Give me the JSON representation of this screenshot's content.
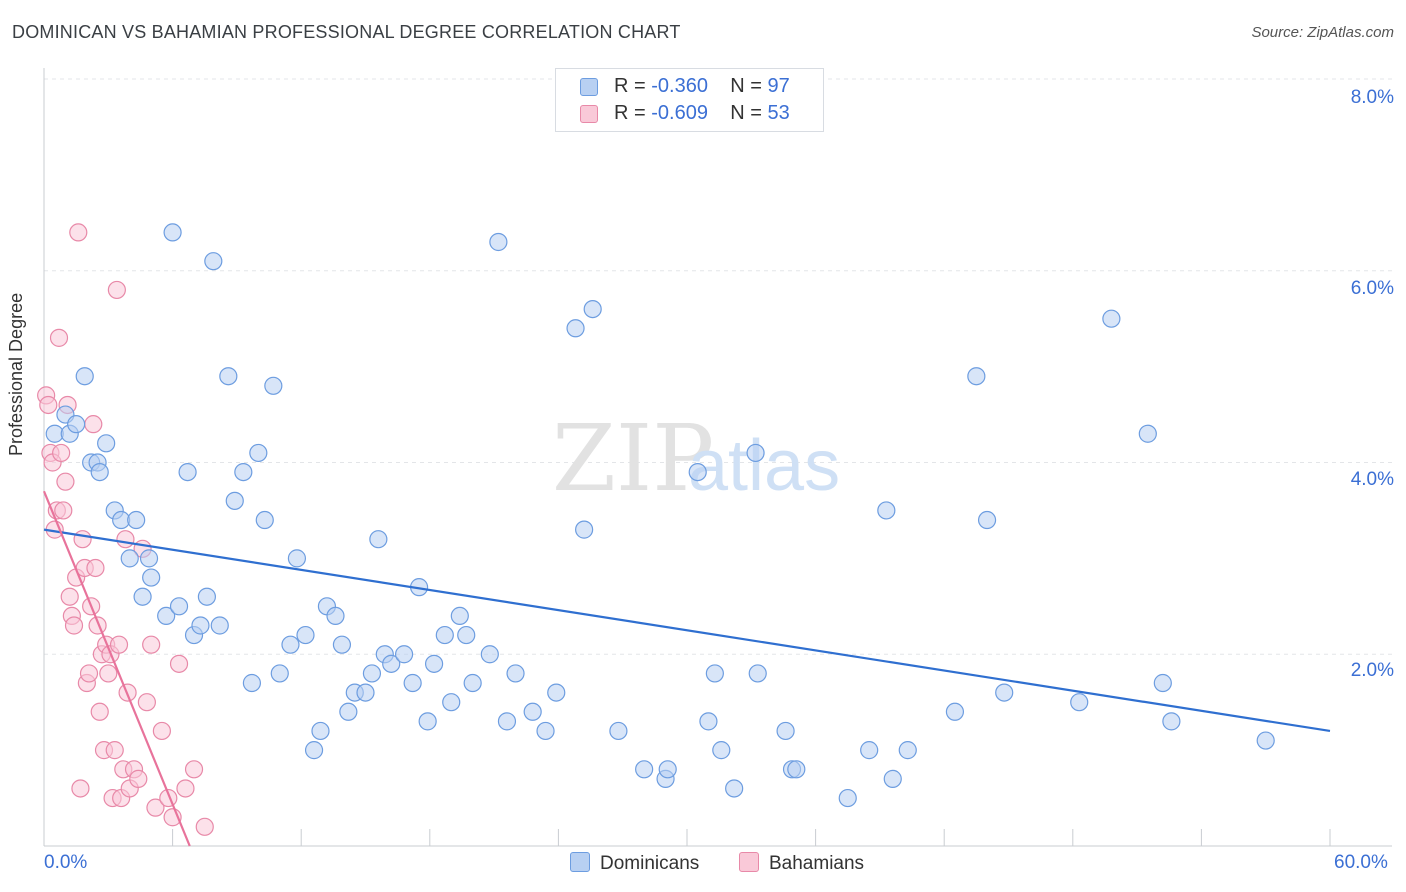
{
  "header": {
    "title": "DOMINICAN VS BAHAMIAN PROFESSIONAL DEGREE CORRELATION CHART",
    "source": "Source: ZipAtlas.com"
  },
  "watermark": {
    "zip": "ZIP",
    "atlas": "atlas"
  },
  "legend": {
    "r_label": "R =",
    "n_label": "N =",
    "dominicans": {
      "r": "-0.360",
      "n": "97"
    },
    "bahamians": {
      "r": "-0.609",
      "n": "53"
    }
  },
  "axis": {
    "ylabel": "Professional Degree",
    "x_min_label": "0.0%",
    "x_max_label": "60.0%",
    "y_ticks": [
      "2.0%",
      "4.0%",
      "6.0%",
      "8.0%"
    ]
  },
  "colors": {
    "blue_fill": "#b8d0f2",
    "blue_stroke": "#6d9de0",
    "blue_line": "#2f6fd0",
    "pink_fill": "#f9c9d8",
    "pink_stroke": "#e889a8",
    "pink_line": "#e8739b"
  },
  "chart_data": {
    "type": "scatter",
    "title": "DOMINICAN VS BAHAMIAN PROFESSIONAL DEGREE CORRELATION CHART",
    "xlabel": "",
    "ylabel": "Professional Degree",
    "xlim": [
      0,
      60
    ],
    "ylim": [
      0,
      8.0
    ],
    "y_ticks": [
      2,
      4,
      6,
      8
    ],
    "grid": true,
    "legend_position": "top-center",
    "series": [
      {
        "name": "Dominicans",
        "r": -0.36,
        "n": 97,
        "trend": {
          "x": [
            0,
            60
          ],
          "y": [
            3.3,
            1.2
          ]
        },
        "points": [
          [
            0.5,
            4.3
          ],
          [
            1.0,
            4.5
          ],
          [
            1.2,
            4.3
          ],
          [
            1.5,
            4.4
          ],
          [
            1.9,
            4.9
          ],
          [
            2.2,
            4.0
          ],
          [
            2.5,
            4.0
          ],
          [
            2.6,
            3.9
          ],
          [
            2.9,
            4.2
          ],
          [
            3.3,
            3.5
          ],
          [
            3.6,
            3.4
          ],
          [
            4.0,
            3.0
          ],
          [
            4.3,
            3.4
          ],
          [
            4.6,
            2.6
          ],
          [
            4.9,
            3.0
          ],
          [
            5.0,
            2.8
          ],
          [
            5.7,
            2.4
          ],
          [
            6.0,
            6.4
          ],
          [
            6.3,
            2.5
          ],
          [
            6.7,
            3.9
          ],
          [
            7.0,
            2.2
          ],
          [
            7.3,
            2.3
          ],
          [
            7.6,
            2.6
          ],
          [
            7.9,
            6.1
          ],
          [
            8.2,
            2.3
          ],
          [
            8.6,
            4.9
          ],
          [
            8.9,
            3.6
          ],
          [
            9.3,
            3.9
          ],
          [
            9.7,
            1.7
          ],
          [
            10.0,
            4.1
          ],
          [
            10.3,
            3.4
          ],
          [
            10.7,
            4.8
          ],
          [
            11.0,
            1.8
          ],
          [
            11.5,
            2.1
          ],
          [
            11.8,
            3.0
          ],
          [
            12.2,
            2.2
          ],
          [
            12.6,
            1.0
          ],
          [
            12.9,
            1.2
          ],
          [
            13.2,
            2.5
          ],
          [
            13.6,
            2.4
          ],
          [
            13.9,
            2.1
          ],
          [
            14.2,
            1.4
          ],
          [
            14.5,
            1.6
          ],
          [
            15.0,
            1.6
          ],
          [
            15.3,
            1.8
          ],
          [
            15.6,
            3.2
          ],
          [
            15.9,
            2.0
          ],
          [
            16.2,
            1.9
          ],
          [
            16.8,
            2.0
          ],
          [
            17.2,
            1.7
          ],
          [
            17.5,
            2.7
          ],
          [
            17.9,
            1.3
          ],
          [
            18.2,
            1.9
          ],
          [
            18.7,
            2.2
          ],
          [
            19.0,
            1.5
          ],
          [
            19.4,
            2.4
          ],
          [
            19.7,
            2.2
          ],
          [
            20.0,
            1.7
          ],
          [
            20.8,
            2.0
          ],
          [
            21.2,
            6.3
          ],
          [
            21.6,
            1.3
          ],
          [
            22.0,
            1.8
          ],
          [
            22.8,
            1.4
          ],
          [
            23.4,
            1.2
          ],
          [
            23.9,
            1.6
          ],
          [
            24.8,
            5.4
          ],
          [
            25.2,
            3.3
          ],
          [
            25.6,
            5.6
          ],
          [
            26.8,
            1.2
          ],
          [
            28.0,
            0.8
          ],
          [
            29.0,
            0.7
          ],
          [
            29.1,
            0.8
          ],
          [
            30.5,
            3.9
          ],
          [
            31.0,
            1.3
          ],
          [
            31.3,
            1.8
          ],
          [
            31.6,
            1.0
          ],
          [
            32.2,
            0.6
          ],
          [
            33.2,
            4.1
          ],
          [
            33.3,
            1.8
          ],
          [
            34.6,
            1.2
          ],
          [
            34.9,
            0.8
          ],
          [
            35.1,
            0.8
          ],
          [
            37.5,
            0.5
          ],
          [
            38.5,
            1.0
          ],
          [
            39.3,
            3.5
          ],
          [
            39.6,
            0.7
          ],
          [
            40.3,
            1.0
          ],
          [
            42.5,
            1.4
          ],
          [
            43.5,
            4.9
          ],
          [
            44.0,
            3.4
          ],
          [
            44.8,
            1.6
          ],
          [
            48.3,
            1.5
          ],
          [
            49.8,
            5.5
          ],
          [
            51.5,
            4.3
          ],
          [
            52.2,
            1.7
          ],
          [
            52.6,
            1.3
          ],
          [
            57.0,
            1.1
          ]
        ]
      },
      {
        "name": "Bahamians",
        "r": -0.609,
        "n": 53,
        "trend": {
          "x": [
            0,
            6.8
          ],
          "y": [
            3.7,
            0.0
          ]
        },
        "points": [
          [
            0.1,
            4.7
          ],
          [
            0.2,
            4.6
          ],
          [
            0.3,
            4.1
          ],
          [
            0.4,
            4.0
          ],
          [
            0.5,
            3.3
          ],
          [
            0.6,
            3.5
          ],
          [
            0.7,
            5.3
          ],
          [
            0.8,
            4.1
          ],
          [
            0.9,
            3.5
          ],
          [
            1.0,
            3.8
          ],
          [
            1.1,
            4.6
          ],
          [
            1.2,
            2.6
          ],
          [
            1.3,
            2.4
          ],
          [
            1.4,
            2.3
          ],
          [
            1.5,
            2.8
          ],
          [
            1.6,
            6.4
          ],
          [
            1.7,
            0.6
          ],
          [
            1.8,
            3.2
          ],
          [
            1.9,
            2.9
          ],
          [
            2.0,
            1.7
          ],
          [
            2.1,
            1.8
          ],
          [
            2.2,
            2.5
          ],
          [
            2.3,
            4.4
          ],
          [
            2.4,
            2.9
          ],
          [
            2.5,
            2.3
          ],
          [
            2.6,
            1.4
          ],
          [
            2.7,
            2.0
          ],
          [
            2.8,
            1.0
          ],
          [
            2.9,
            2.1
          ],
          [
            3.0,
            1.8
          ],
          [
            3.1,
            2.0
          ],
          [
            3.2,
            0.5
          ],
          [
            3.3,
            1.0
          ],
          [
            3.4,
            5.8
          ],
          [
            3.5,
            2.1
          ],
          [
            3.6,
            0.5
          ],
          [
            3.7,
            0.8
          ],
          [
            3.8,
            3.2
          ],
          [
            3.9,
            1.6
          ],
          [
            4.0,
            0.6
          ],
          [
            4.2,
            0.8
          ],
          [
            4.4,
            0.7
          ],
          [
            4.6,
            3.1
          ],
          [
            4.8,
            1.5
          ],
          [
            5.0,
            2.1
          ],
          [
            5.2,
            0.4
          ],
          [
            5.5,
            1.2
          ],
          [
            5.8,
            0.5
          ],
          [
            6.0,
            0.3
          ],
          [
            6.3,
            1.9
          ],
          [
            6.6,
            0.6
          ],
          [
            7.0,
            0.8
          ],
          [
            7.5,
            0.2
          ]
        ]
      }
    ]
  }
}
